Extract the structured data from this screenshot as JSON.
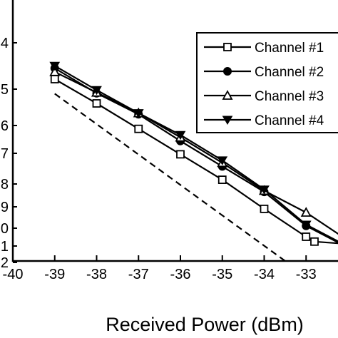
{
  "chart_data": {
    "type": "line",
    "title": "",
    "xlabel": "Received Power (dBm)",
    "ylabel": "",
    "xlim": [
      -40,
      -32
    ],
    "x_ticks": [
      "-40",
      "-39",
      "-38",
      "-37",
      "-36",
      "-35",
      "-34",
      "-33",
      "-3"
    ],
    "y_ticks_partial": [
      "4",
      "5",
      "6",
      "7",
      "8",
      "9",
      "10",
      "1",
      "2"
    ],
    "grid": false,
    "legend_position": "top-right",
    "series": [
      {
        "name": "Channel #1",
        "marker": "open-square",
        "x": [
          -39,
          -38,
          -37,
          -36,
          -35,
          -34,
          -33,
          -32.8,
          -32
        ],
        "y": [
          1.5,
          2.5,
          3.55,
          4.6,
          5.65,
          6.85,
          8.0,
          8.2,
          8.3
        ]
      },
      {
        "name": "Channel #2",
        "marker": "filled-circle",
        "x": [
          -39,
          -38,
          -37,
          -36,
          -35,
          -34,
          -33,
          -32
        ],
        "y": [
          1.05,
          2.08,
          2.95,
          4.05,
          5.1,
          6.15,
          7.55,
          8.45
        ]
      },
      {
        "name": "Channel #3",
        "marker": "open-triangle",
        "x": [
          -39,
          -38,
          -37,
          -36,
          -35,
          -34,
          -33,
          -32
        ],
        "y": [
          1.2,
          2.05,
          2.9,
          3.9,
          4.95,
          6.1,
          7.0,
          8.15
        ]
      },
      {
        "name": "Channel #4",
        "marker": "filled-triangle-down",
        "x": [
          -39,
          -38,
          -37,
          -36,
          -35,
          -34,
          -33,
          -32
        ],
        "y": [
          0.95,
          1.95,
          2.9,
          3.8,
          4.85,
          6.05,
          7.5,
          8.4
        ]
      },
      {
        "name": "",
        "style": "dashed",
        "marker": "none",
        "x": [
          -39,
          -33.5
        ],
        "y": [
          2.1,
          9.0
        ]
      }
    ]
  }
}
